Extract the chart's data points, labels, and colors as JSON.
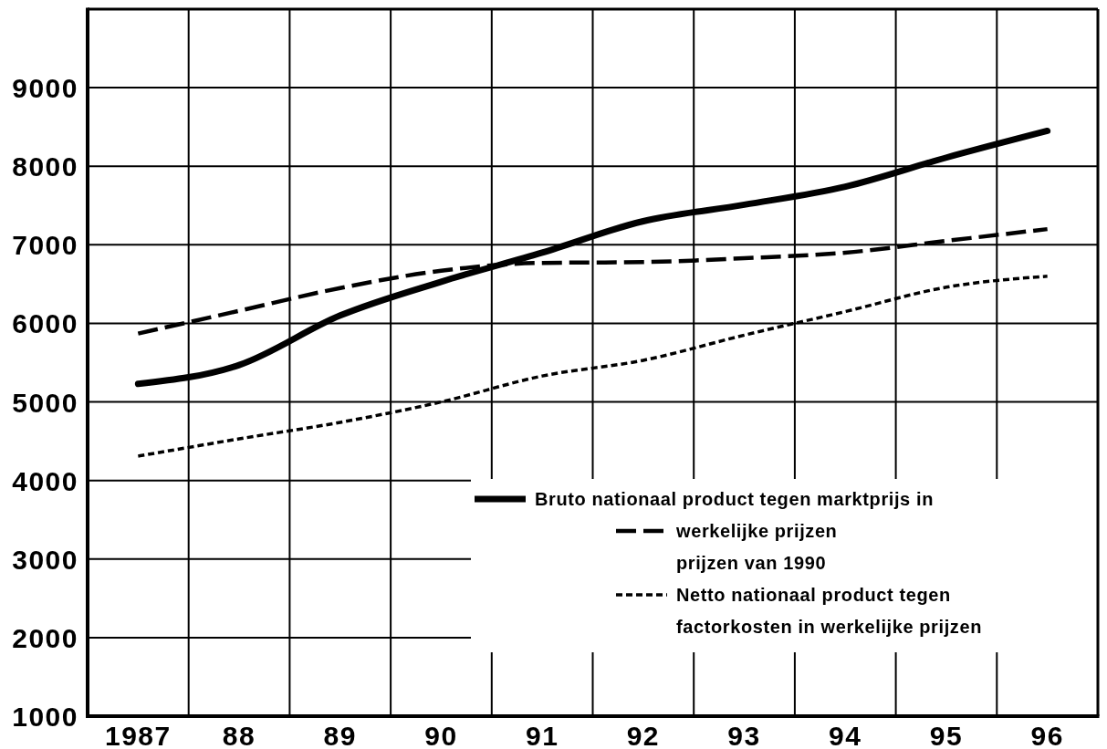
{
  "chart_data": {
    "type": "line",
    "categories": [
      "1987",
      "88",
      "89",
      "90",
      "91",
      "92",
      "93",
      "94",
      "95",
      "96"
    ],
    "series": [
      {
        "name": "Bruto nationaal product tegen marktprijs in",
        "color": "#000000",
        "line_style": "solid",
        "values": [
          5230,
          5470,
          6100,
          6530,
          6900,
          7300,
          7510,
          7740,
          8110,
          8450
        ]
      },
      {
        "name": "werkelijke prijzen\nprijzen van 1990",
        "color": "#000000",
        "line_style": "dashed",
        "values": [
          5870,
          6160,
          6450,
          6670,
          6770,
          6780,
          6830,
          6900,
          7050,
          7200
        ]
      },
      {
        "name": "Netto nationaal product tegen\nfactorkosten in werkelijke prijzen",
        "color": "#000000",
        "line_style": "dotted",
        "values": [
          4310,
          4530,
          4740,
          5000,
          5330,
          5530,
          5850,
          6150,
          6460,
          6600
        ]
      }
    ],
    "ylim": [
      1000,
      10000
    ],
    "yticks": [
      1000,
      2000,
      3000,
      4000,
      5000,
      6000,
      7000,
      8000,
      9000
    ],
    "grid": true,
    "legend": "bottom right"
  }
}
